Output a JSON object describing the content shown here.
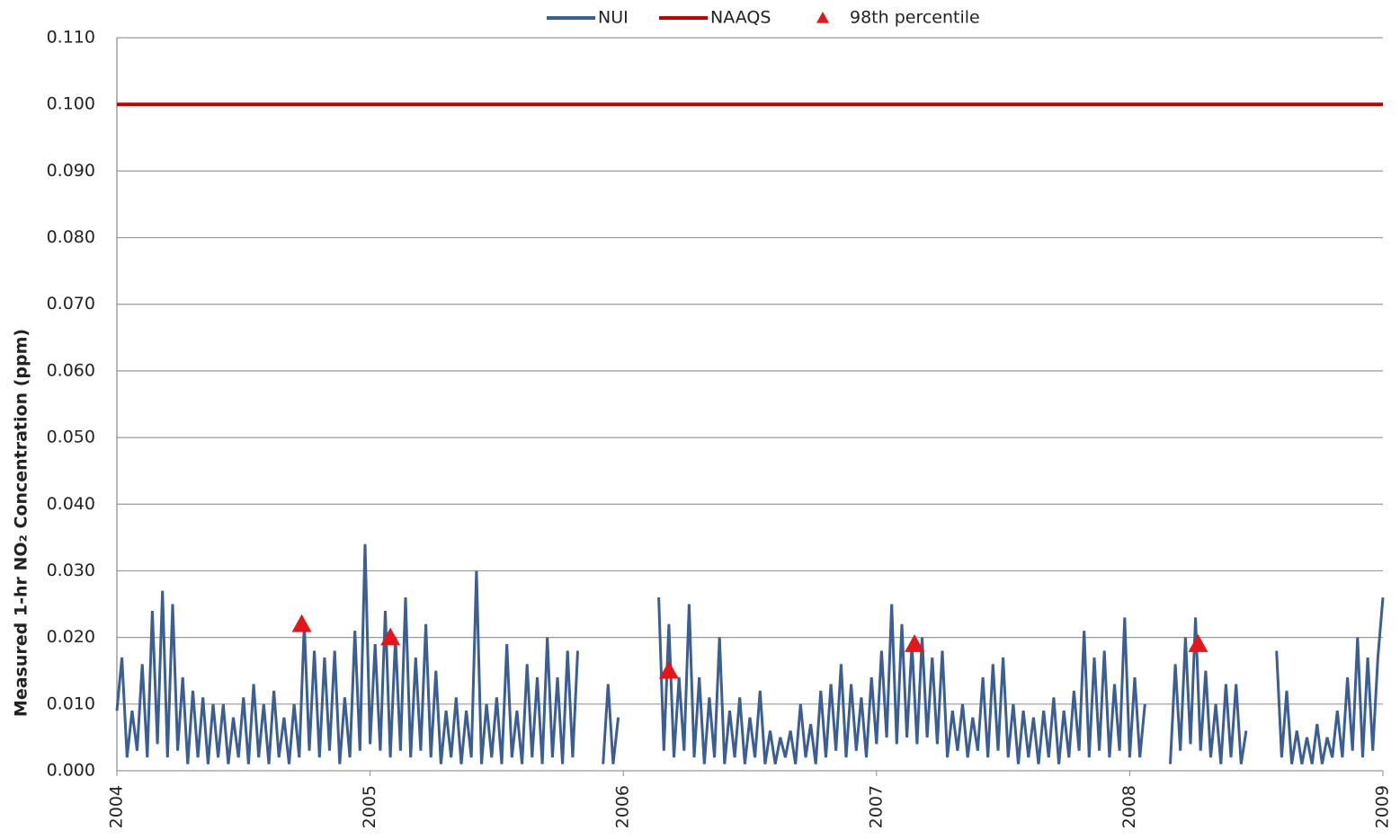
{
  "chart_data": {
    "type": "line",
    "y_label": "Measured 1-hr NO₂ Concentration (ppm)",
    "xlim": [
      2004,
      2009
    ],
    "xticks": [
      2004,
      2005,
      2006,
      2007,
      2008,
      2009
    ],
    "ylim": [
      0,
      0.11
    ],
    "yticks": [
      {
        "value": 0,
        "label": "0.000"
      },
      {
        "value": 0.01,
        "label": "0.010"
      },
      {
        "value": 0.02,
        "label": "0.020"
      },
      {
        "value": 0.03,
        "label": "0.030"
      },
      {
        "value": 0.04,
        "label": "0.040"
      },
      {
        "value": 0.05,
        "label": "0.050"
      },
      {
        "value": 0.06,
        "label": "0.060"
      },
      {
        "value": 0.07,
        "label": "0.070"
      },
      {
        "value": 0.08,
        "label": "0.080"
      },
      {
        "value": 0.09,
        "label": "0.090"
      },
      {
        "value": 0.1,
        "label": "0.100"
      },
      {
        "value": 0.11,
        "label": "0.110"
      }
    ],
    "grid": true,
    "legend": "top",
    "series": [
      {
        "name": "NUI",
        "color": "#3b5e93",
        "x": [
          2004,
          2004.02,
          2004.04,
          2004.06,
          2004.08,
          2004.1,
          2004.12,
          2004.14,
          2004.16,
          2004.18,
          2004.2,
          2004.22,
          2004.24,
          2004.26,
          2004.28,
          2004.3,
          2004.32,
          2004.34,
          2004.36,
          2004.38,
          2004.4,
          2004.42,
          2004.44,
          2004.46,
          2004.48,
          2004.5,
          2004.52,
          2004.54,
          2004.56,
          2004.58,
          2004.6,
          2004.62,
          2004.64,
          2004.66,
          2004.68,
          2004.7,
          2004.72,
          2004.74,
          2004.76,
          2004.78,
          2004.8,
          2004.82,
          2004.84,
          2004.86,
          2004.88,
          2004.9,
          2004.92,
          2004.94,
          2004.96,
          2004.98,
          2005,
          2005.02,
          2005.04,
          2005.06,
          2005.08,
          2005.1,
          2005.12,
          2005.14,
          2005.16,
          2005.18,
          2005.2,
          2005.22,
          2005.24,
          2005.26,
          2005.28,
          2005.3,
          2005.32,
          2005.34,
          2005.36,
          2005.38,
          2005.4,
          2005.42,
          2005.44,
          2005.46,
          2005.48,
          2005.5,
          2005.52,
          2005.54,
          2005.56,
          2005.58,
          2005.6,
          2005.62,
          2005.64,
          2005.66,
          2005.68,
          2005.7,
          2005.72,
          2005.74,
          2005.76,
          2005.78,
          2005.8,
          2005.82,
          2005.84,
          2005.86,
          2005.88,
          2005.9,
          2005.92,
          2005.94,
          2005.96,
          2005.98,
          2006,
          2006.02,
          2006.04,
          2006.06,
          2006.08,
          2006.1,
          2006.12,
          2006.14,
          2006.16,
          2006.18,
          2006.2,
          2006.22,
          2006.24,
          2006.26,
          2006.28,
          2006.3,
          2006.32,
          2006.34,
          2006.36,
          2006.38,
          2006.4,
          2006.42,
          2006.44,
          2006.46,
          2006.48,
          2006.5,
          2006.52,
          2006.54,
          2006.56,
          2006.58,
          2006.6,
          2006.62,
          2006.64,
          2006.66,
          2006.68,
          2006.7,
          2006.72,
          2006.74,
          2006.76,
          2006.78,
          2006.8,
          2006.82,
          2006.84,
          2006.86,
          2006.88,
          2006.9,
          2006.92,
          2006.94,
          2006.96,
          2006.98,
          2007,
          2007.02,
          2007.04,
          2007.06,
          2007.08,
          2007.1,
          2007.12,
          2007.14,
          2007.16,
          2007.18,
          2007.2,
          2007.22,
          2007.24,
          2007.26,
          2007.28,
          2007.3,
          2007.32,
          2007.34,
          2007.36,
          2007.38,
          2007.4,
          2007.42,
          2007.44,
          2007.46,
          2007.48,
          2007.5,
          2007.52,
          2007.54,
          2007.56,
          2007.58,
          2007.6,
          2007.62,
          2007.64,
          2007.66,
          2007.68,
          2007.7,
          2007.72,
          2007.74,
          2007.76,
          2007.78,
          2007.8,
          2007.82,
          2007.84,
          2007.86,
          2007.88,
          2007.9,
          2007.92,
          2007.94,
          2007.96,
          2007.98,
          2008,
          2008.02,
          2008.04,
          2008.06,
          2008.08,
          2008.1,
          2008.12,
          2008.14,
          2008.16,
          2008.18,
          2008.2,
          2008.22,
          2008.24,
          2008.26,
          2008.28,
          2008.3,
          2008.32,
          2008.34,
          2008.36,
          2008.38,
          2008.4,
          2008.42,
          2008.44,
          2008.46,
          2008.48,
          2008.5,
          2008.52,
          2008.54,
          2008.56,
          2008.58,
          2008.6,
          2008.62,
          2008.64,
          2008.66,
          2008.68,
          2008.7,
          2008.72,
          2008.74,
          2008.76,
          2008.78,
          2008.8,
          2008.82,
          2008.84,
          2008.86,
          2008.88,
          2008.9,
          2008.92,
          2008.94,
          2008.96,
          2008.98,
          2009
        ],
        "values": [
          0.009,
          0.017,
          0.002,
          0.009,
          0.003,
          0.016,
          0.002,
          0.024,
          0.004,
          0.027,
          0.002,
          0.025,
          0.003,
          0.014,
          0.001,
          0.012,
          0.002,
          0.011,
          0.001,
          0.01,
          0.002,
          0.01,
          0.001,
          0.008,
          0.002,
          0.011,
          0.001,
          0.013,
          0.002,
          0.01,
          0.001,
          0.012,
          0.002,
          0.008,
          0.001,
          0.01,
          0.002,
          0.022,
          0.003,
          0.018,
          0.002,
          0.017,
          0.003,
          0.018,
          0.001,
          0.011,
          0.002,
          0.021,
          0.003,
          0.034,
          0.004,
          0.019,
          0.003,
          0.024,
          0.002,
          0.02,
          0.003,
          0.026,
          0.002,
          0.017,
          0.003,
          0.022,
          0.002,
          0.015,
          0.001,
          0.009,
          0.002,
          0.011,
          0.001,
          0.009,
          0.002,
          0.03,
          0.001,
          0.01,
          0.002,
          0.011,
          0.001,
          0.019,
          0.002,
          0.009,
          0.001,
          0.016,
          0.002,
          0.014,
          0.001,
          0.02,
          0.002,
          0.014,
          0.001,
          0.018,
          0.002,
          0.018,
          null,
          null,
          null,
          null,
          0.001,
          0.013,
          0.001,
          0.008,
          null,
          null,
          null,
          null,
          null,
          null,
          null,
          0.026,
          0.003,
          0.022,
          0.002,
          0.014,
          0.003,
          0.025,
          0.002,
          0.014,
          0.001,
          0.011,
          0.002,
          0.02,
          0.001,
          0.009,
          0.002,
          0.011,
          0.001,
          0.008,
          0.002,
          0.012,
          0.001,
          0.006,
          0.001,
          0.005,
          0.002,
          0.006,
          0.001,
          0.01,
          0.002,
          0.007,
          0.001,
          0.012,
          0.002,
          0.013,
          0.003,
          0.016,
          0.002,
          0.013,
          0.003,
          0.011,
          0.002,
          0.014,
          0.004,
          0.018,
          0.005,
          0.025,
          0.004,
          0.022,
          0.005,
          0.019,
          0.004,
          0.02,
          0.005,
          0.017,
          0.004,
          0.018,
          0.002,
          0.009,
          0.003,
          0.01,
          0.002,
          0.008,
          0.003,
          0.014,
          0.002,
          0.016,
          0.003,
          0.017,
          0.002,
          0.01,
          0.001,
          0.009,
          0.002,
          0.008,
          0.001,
          0.009,
          0.002,
          0.011,
          0.001,
          0.009,
          0.002,
          0.012,
          0.003,
          0.021,
          0.002,
          0.017,
          0.003,
          0.018,
          0.002,
          0.013,
          0.003,
          0.023,
          0.002,
          0.014,
          0.002,
          0.01,
          null,
          null,
          null,
          null,
          0.001,
          0.016,
          0.003,
          0.02,
          0.004,
          0.023,
          0.003,
          0.015,
          0.002,
          0.01,
          0.001,
          0.013,
          0.002,
          0.013,
          0.001,
          0.006,
          null,
          null,
          null,
          null,
          null,
          0.018,
          0.002,
          0.012,
          0.001,
          0.006,
          0.001,
          0.005,
          0.001,
          0.007,
          0.001,
          0.005,
          0.002,
          0.009,
          0.002,
          0.014,
          0.003,
          0.02,
          0.002,
          0.017,
          0.003,
          0.017,
          0.026
        ]
      },
      {
        "name": "NAAQS",
        "color": "#c00000",
        "x": [
          2004,
          2009
        ],
        "values": [
          0.1,
          0.1
        ]
      },
      {
        "name": "98th percentile",
        "type": "scatter",
        "color": "#e8141c",
        "x": [
          2004.73,
          2005.08,
          2006.18,
          2007.15,
          2008.27
        ],
        "values": [
          0.022,
          0.02,
          0.015,
          0.019,
          0.019
        ]
      }
    ]
  }
}
